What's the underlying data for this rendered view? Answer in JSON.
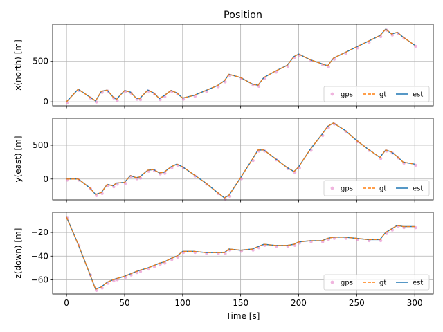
{
  "chart_data": {
    "type": "line",
    "title": "Position",
    "xlabel": "Time [s]",
    "xlim": [
      -12,
      316
    ],
    "xticks": [
      0,
      50,
      100,
      150,
      200,
      250,
      300
    ],
    "grid": true,
    "legend_position": "lower-right",
    "series_styles": [
      {
        "name": "gps",
        "kind": "scatter",
        "color": "#e377c2"
      },
      {
        "name": "gt",
        "kind": "dashed-line",
        "color": "#ff7f0e"
      },
      {
        "name": "est",
        "kind": "line",
        "color": "#1f77b4"
      }
    ],
    "subplots": [
      {
        "ylabel": "x(north) [m]",
        "ylim": [
          -50,
          960
        ],
        "yticks": [
          0,
          500
        ],
        "x": [
          0,
          10,
          20,
          25,
          30,
          35,
          40,
          43,
          50,
          55,
          60,
          63,
          70,
          75,
          80,
          84,
          90,
          95,
          100,
          110,
          120,
          130,
          136,
          140,
          150,
          160,
          165,
          170,
          180,
          190,
          196,
          200,
          210,
          220,
          225,
          230,
          240,
          250,
          260,
          270,
          275,
          280,
          285,
          290,
          300
        ],
        "y": [
          0,
          155,
          60,
          10,
          130,
          145,
          60,
          30,
          140,
          120,
          45,
          40,
          145,
          110,
          40,
          75,
          140,
          110,
          45,
          80,
          140,
          200,
          260,
          340,
          300,
          220,
          205,
          300,
          380,
          450,
          560,
          590,
          520,
          470,
          445,
          540,
          610,
          680,
          750,
          820,
          900,
          840,
          860,
          800,
          700
        ]
      },
      {
        "ylabel": "y(east) [m]",
        "ylim": [
          -310,
          900
        ],
        "yticks": [
          0,
          500
        ],
        "x": [
          0,
          10,
          20,
          25,
          30,
          35,
          40,
          43,
          50,
          55,
          60,
          63,
          70,
          75,
          80,
          84,
          90,
          95,
          100,
          110,
          120,
          130,
          136,
          140,
          150,
          160,
          165,
          170,
          180,
          190,
          196,
          200,
          210,
          220,
          225,
          230,
          240,
          250,
          260,
          270,
          275,
          280,
          285,
          290,
          300
        ],
        "y": [
          0,
          0,
          -130,
          -230,
          -200,
          -80,
          -100,
          -60,
          -50,
          50,
          20,
          30,
          130,
          140,
          90,
          100,
          180,
          220,
          180,
          60,
          -60,
          -200,
          -280,
          -240,
          20,
          290,
          430,
          430,
          300,
          170,
          110,
          180,
          440,
          660,
          780,
          830,
          720,
          570,
          440,
          320,
          430,
          400,
          330,
          250,
          220
        ]
      },
      {
        "ylabel": "z(down) [m]",
        "ylim": [
          -72,
          -3
        ],
        "yticks": [
          -60,
          -40,
          -20
        ],
        "x": [
          0,
          10,
          20,
          25,
          30,
          35,
          40,
          43,
          50,
          55,
          60,
          63,
          70,
          75,
          80,
          84,
          90,
          95,
          100,
          110,
          120,
          130,
          136,
          140,
          150,
          160,
          165,
          170,
          180,
          190,
          196,
          200,
          210,
          220,
          225,
          230,
          240,
          250,
          260,
          270,
          275,
          280,
          285,
          290,
          300
        ],
        "y": [
          -7,
          -30,
          -55,
          -68,
          -66,
          -62,
          -60,
          -59,
          -57,
          -55,
          -53,
          -52,
          -50,
          -48,
          -46,
          -45,
          -42,
          -40,
          -36,
          -36,
          -37,
          -37,
          -37,
          -34,
          -35,
          -34,
          -32,
          -30,
          -31,
          -31,
          -30,
          -28,
          -27,
          -27,
          -25,
          -24,
          -24,
          -25,
          -26,
          -26,
          -20,
          -17,
          -14,
          -15,
          -15
        ]
      }
    ]
  }
}
